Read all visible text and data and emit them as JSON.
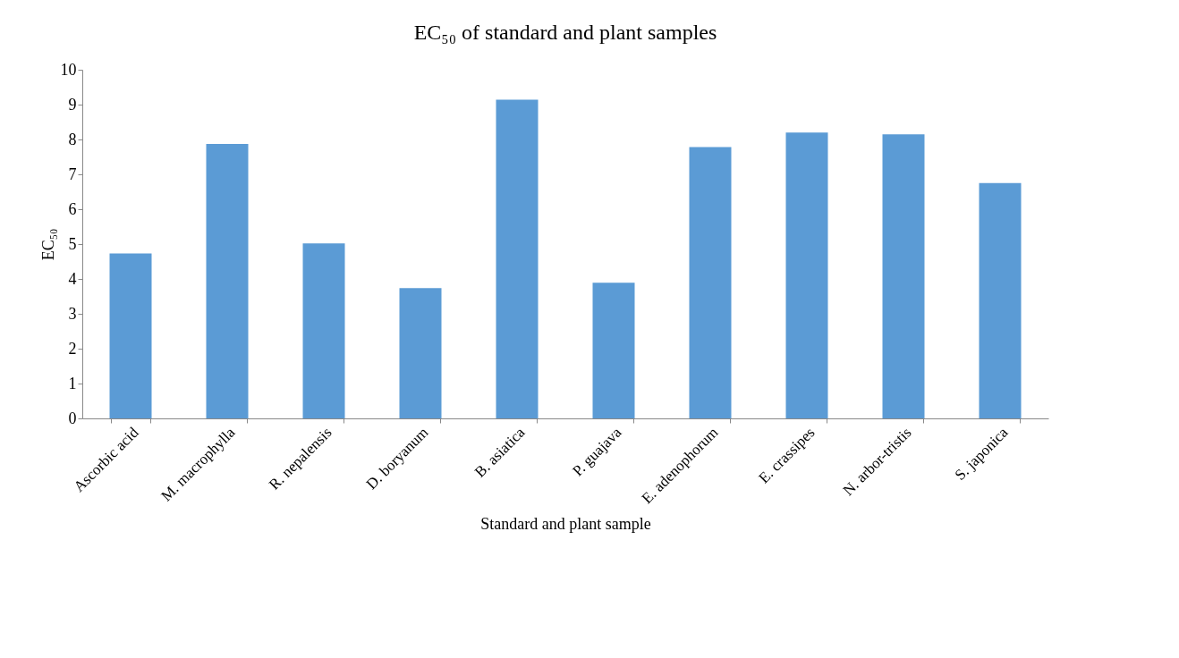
{
  "chart_data": {
    "type": "bar",
    "title": "EC₅₀ of standard and plant samples",
    "xlabel": "Standard and plant sample",
    "ylabel": "EC₅₀",
    "categories": [
      "Ascorbic acid",
      "M. macrophylla",
      "R. nepalensis",
      "D. boryanum",
      "B. asiatica",
      "P. guajava",
      "E. adenophorum",
      "E. crassipes",
      "N. arbor-tristis",
      "S. japonica"
    ],
    "values": [
      4.73,
      7.87,
      5.02,
      3.74,
      9.14,
      3.89,
      7.78,
      8.2,
      8.15,
      6.75
    ],
    "color": "#5b9bd5",
    "ylim": [
      0,
      10
    ],
    "yticks": [
      0,
      1,
      2,
      3,
      4,
      5,
      6,
      7,
      8,
      9,
      10
    ],
    "grid": false
  }
}
